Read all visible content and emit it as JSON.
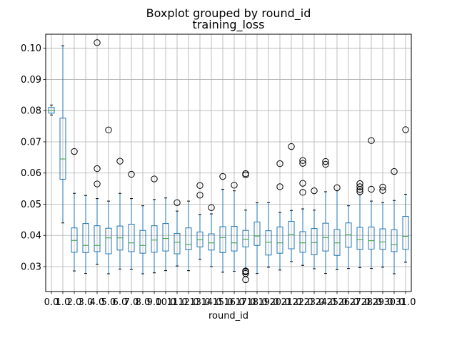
{
  "figure": {
    "suptitle": "Boxplot grouped by round_id",
    "title": "training_loss",
    "xlabel": "round_id"
  },
  "chart_data": {
    "type": "box",
    "title": "Boxplot grouped by round_id",
    "subtitle": "training_loss",
    "xlabel": "round_id",
    "ylabel": "",
    "ylim": [
      0.022,
      0.1045
    ],
    "yticks": [
      "0.03",
      "0.04",
      "0.05",
      "0.06",
      "0.07",
      "0.08",
      "0.09",
      "0.10"
    ],
    "grid": true,
    "colors": {
      "box": "#1f77b4",
      "median": "#2ca02c",
      "whisker": "#000000",
      "grid": "#b0b0b0"
    },
    "categories": [
      "0.0",
      "1.0",
      "2.0",
      "3.0",
      "4.0",
      "5.0",
      "6.0",
      "7.0",
      "8.0",
      "9.0",
      "10.0",
      "11.0",
      "12.0",
      "13.0",
      "14.0",
      "15.0",
      "16.0",
      "17.0",
      "18.0",
      "19.0",
      "20.0",
      "21.0",
      "22.0",
      "23.0",
      "24.0",
      "25.0",
      "26.0",
      "27.0",
      "28.0",
      "29.0",
      "30.0",
      "31.0"
    ],
    "boxes": [
      {
        "whislo": 0.0786,
        "q1": 0.0792,
        "med": 0.08,
        "q3": 0.081,
        "whishi": 0.0818,
        "fliers": []
      },
      {
        "whislo": 0.044,
        "q1": 0.058,
        "med": 0.0645,
        "q3": 0.0776,
        "whishi": 0.1008,
        "fliers": []
      },
      {
        "whislo": 0.0286,
        "q1": 0.0346,
        "med": 0.0384,
        "q3": 0.0424,
        "whishi": 0.0535,
        "fliers": [
          0.0669
        ]
      },
      {
        "whislo": 0.0278,
        "q1": 0.0345,
        "med": 0.0368,
        "q3": 0.0438,
        "whishi": 0.0528,
        "fliers": []
      },
      {
        "whislo": 0.0307,
        "q1": 0.0348,
        "med": 0.0368,
        "q3": 0.0431,
        "whishi": 0.0518,
        "fliers": [
          0.0565,
          0.0614,
          0.1018
        ]
      },
      {
        "whislo": 0.0277,
        "q1": 0.0341,
        "med": 0.0392,
        "q3": 0.0423,
        "whishi": 0.051,
        "fliers": [
          0.0738
        ]
      },
      {
        "whislo": 0.0292,
        "q1": 0.0353,
        "med": 0.0392,
        "q3": 0.043,
        "whishi": 0.0535,
        "fliers": [
          0.0638
        ]
      },
      {
        "whislo": 0.0291,
        "q1": 0.0348,
        "med": 0.0376,
        "q3": 0.0436,
        "whishi": 0.0518,
        "fliers": [
          0.0596
        ]
      },
      {
        "whislo": 0.0277,
        "q1": 0.0343,
        "med": 0.0368,
        "q3": 0.0416,
        "whishi": 0.0495,
        "fliers": []
      },
      {
        "whislo": 0.028,
        "q1": 0.0346,
        "med": 0.0385,
        "q3": 0.0431,
        "whishi": 0.0515,
        "fliers": [
          0.0581
        ]
      },
      {
        "whislo": 0.0287,
        "q1": 0.035,
        "med": 0.039,
        "q3": 0.0438,
        "whishi": 0.052,
        "fliers": []
      },
      {
        "whislo": 0.0302,
        "q1": 0.0341,
        "med": 0.0378,
        "q3": 0.0406,
        "whishi": 0.0478,
        "fliers": [
          0.0505
        ]
      },
      {
        "whislo": 0.0287,
        "q1": 0.0354,
        "med": 0.0371,
        "q3": 0.0424,
        "whishi": 0.051,
        "fliers": []
      },
      {
        "whislo": 0.0323,
        "q1": 0.0363,
        "med": 0.0386,
        "q3": 0.0411,
        "whishi": 0.0467,
        "fliers": [
          0.0529,
          0.056
        ]
      },
      {
        "whislo": 0.03,
        "q1": 0.0353,
        "med": 0.0376,
        "q3": 0.0405,
        "whishi": 0.0469,
        "fliers": [
          0.0489
        ]
      },
      {
        "whislo": 0.0282,
        "q1": 0.0345,
        "med": 0.0393,
        "q3": 0.0428,
        "whishi": 0.0548,
        "fliers": [
          0.0589
        ]
      },
      {
        "whislo": 0.0285,
        "q1": 0.035,
        "med": 0.0376,
        "q3": 0.0429,
        "whishi": 0.0543,
        "fliers": [
          0.0561
        ]
      },
      {
        "whislo": 0.0293,
        "q1": 0.0363,
        "med": 0.0388,
        "q3": 0.0416,
        "whishi": 0.0481,
        "fliers": [
          0.0258,
          0.0278,
          0.0283,
          0.0286,
          0.0594,
          0.0598
        ]
      },
      {
        "whislo": 0.0278,
        "q1": 0.0368,
        "med": 0.0398,
        "q3": 0.0443,
        "whishi": 0.0505,
        "fliers": []
      },
      {
        "whislo": 0.0298,
        "q1": 0.0337,
        "med": 0.0378,
        "q3": 0.0415,
        "whishi": 0.0505,
        "fliers": []
      },
      {
        "whislo": 0.0289,
        "q1": 0.0343,
        "med": 0.0376,
        "q3": 0.0427,
        "whishi": 0.0474,
        "fliers": [
          0.0556,
          0.063
        ]
      },
      {
        "whislo": 0.0316,
        "q1": 0.0357,
        "med": 0.0403,
        "q3": 0.0445,
        "whishi": 0.048,
        "fliers": [
          0.0685
        ]
      },
      {
        "whislo": 0.0304,
        "q1": 0.0346,
        "med": 0.0376,
        "q3": 0.0412,
        "whishi": 0.0485,
        "fliers": [
          0.0538,
          0.0567,
          0.0631,
          0.064
        ]
      },
      {
        "whislo": 0.0293,
        "q1": 0.0338,
        "med": 0.0377,
        "q3": 0.0422,
        "whishi": 0.0481,
        "fliers": [
          0.0543
        ]
      },
      {
        "whislo": 0.0278,
        "q1": 0.035,
        "med": 0.0393,
        "q3": 0.0439,
        "whishi": 0.054,
        "fliers": [
          0.0628,
          0.0637
        ]
      },
      {
        "whislo": 0.029,
        "q1": 0.0336,
        "med": 0.0376,
        "q3": 0.0419,
        "whishi": 0.0543,
        "fliers": [
          0.0553
        ]
      },
      {
        "whislo": 0.0294,
        "q1": 0.0362,
        "med": 0.0402,
        "q3": 0.044,
        "whishi": 0.0495,
        "fliers": []
      },
      {
        "whislo": 0.0297,
        "q1": 0.0355,
        "med": 0.0387,
        "q3": 0.0426,
        "whishi": 0.053,
        "fliers": [
          0.054,
          0.0547,
          0.0556,
          0.0566
        ]
      },
      {
        "whislo": 0.0294,
        "q1": 0.0356,
        "med": 0.0383,
        "q3": 0.0427,
        "whishi": 0.051,
        "fliers": [
          0.0548,
          0.0704
        ]
      },
      {
        "whislo": 0.0298,
        "q1": 0.0355,
        "med": 0.0379,
        "q3": 0.0421,
        "whishi": 0.0505,
        "fliers": [
          0.0544,
          0.0555
        ]
      },
      {
        "whislo": 0.0277,
        "q1": 0.0348,
        "med": 0.037,
        "q3": 0.0418,
        "whishi": 0.0512,
        "fliers": [
          0.0605
        ]
      },
      {
        "whislo": 0.0314,
        "q1": 0.0355,
        "med": 0.0397,
        "q3": 0.0461,
        "whishi": 0.0532,
        "fliers": [
          0.0739
        ]
      }
    ]
  }
}
